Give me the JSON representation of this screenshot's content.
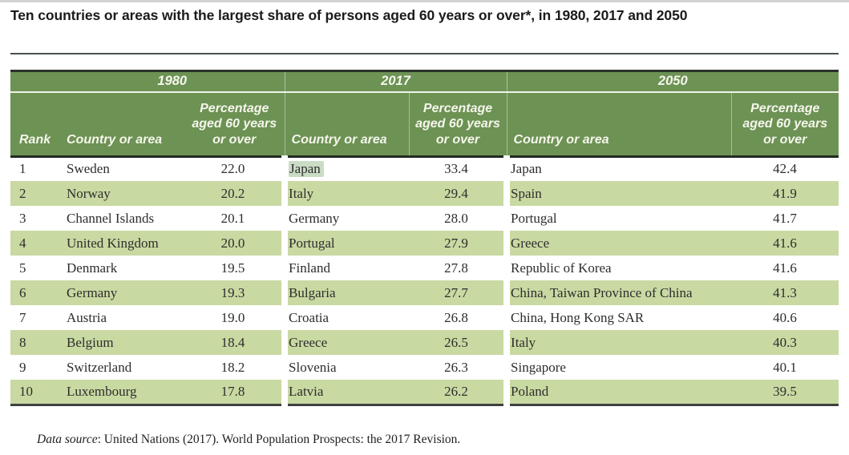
{
  "page": {
    "title": "Ten countries or areas with the largest share of persons aged 60 years or over*, in 1980, 2017 and 2050",
    "source_note": {
      "label": "Data source",
      "text": ": United Nations (2017). World Population Prospects: the 2017 Revision."
    }
  },
  "table": {
    "year_groups": [
      "1980",
      "2017",
      "2050"
    ],
    "column_headers": {
      "rank": "Rank",
      "country": "Country or area",
      "percentage_lines": [
        "Percentage",
        "aged 60 years",
        "or over"
      ]
    },
    "rows": [
      {
        "rank": "1",
        "c1980": "Sweden",
        "p1980": "22.0",
        "c2017": "Japan",
        "p2017": "33.4",
        "c2050": "Japan",
        "p2050": "42.4",
        "c2017_highlight": true
      },
      {
        "rank": "2",
        "c1980": "Norway",
        "p1980": "20.2",
        "c2017": "Italy",
        "p2017": "29.4",
        "c2050": "Spain",
        "p2050": "41.9"
      },
      {
        "rank": "3",
        "c1980": "Channel Islands",
        "p1980": "20.1",
        "c2017": "Germany",
        "p2017": "28.0",
        "c2050": "Portugal",
        "p2050": "41.7"
      },
      {
        "rank": "4",
        "c1980": "United Kingdom",
        "p1980": "20.0",
        "c2017": "Portugal",
        "p2017": "27.9",
        "c2050": "Greece",
        "p2050": "41.6"
      },
      {
        "rank": "5",
        "c1980": "Denmark",
        "p1980": "19.5",
        "c2017": "Finland",
        "p2017": "27.8",
        "c2050": "Republic of Korea",
        "p2050": "41.6"
      },
      {
        "rank": "6",
        "c1980": "Germany",
        "p1980": "19.3",
        "c2017": "Bulgaria",
        "p2017": "27.7",
        "c2050": "China, Taiwan Province of China",
        "p2050": "41.3"
      },
      {
        "rank": "7",
        "c1980": "Austria",
        "p1980": "19.0",
        "c2017": "Croatia",
        "p2017": "26.8",
        "c2050": "China, Hong Kong SAR",
        "p2050": "40.6"
      },
      {
        "rank": "8",
        "c1980": "Belgium",
        "p1980": "18.4",
        "c2017": "Greece",
        "p2017": "26.5",
        "c2050": "Italy",
        "p2050": "40.3"
      },
      {
        "rank": "9",
        "c1980": "Switzerland",
        "p1980": "18.2",
        "c2017": "Slovenia",
        "p2017": "26.3",
        "c2050": "Singapore",
        "p2050": "40.1"
      },
      {
        "rank": "10",
        "c1980": "Luxembourg",
        "p1980": "17.8",
        "c2017": "Latvia",
        "p2017": "26.2",
        "c2050": "Poland",
        "p2050": "39.5"
      }
    ],
    "highlight": {
      "text": "Japan",
      "location": "2017 country column, rank 1"
    }
  },
  "colors": {
    "header_green": "#6c9254",
    "stripe_green": "#c9d9a2",
    "selection_highlight": "#cbdcc5",
    "header_text": "#f6f6ec",
    "body_text": "#2d2d2d"
  }
}
